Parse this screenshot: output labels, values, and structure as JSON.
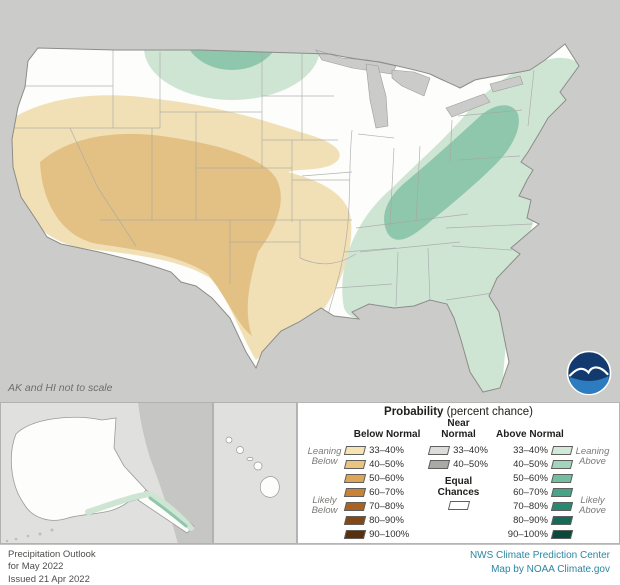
{
  "map": {
    "note": "AK and HI not to scale",
    "colors": {
      "canvas": "#cbcbc9",
      "us_fill": "#fdfdfb",
      "us_outline": "#8c8c8a",
      "state_border": "#a6a6a4",
      "lake_fill": "#cbcbc9",
      "below_33_40": "#f1e0b6",
      "below_40_50": "#e3c185",
      "above_33_40": "#cfe5d4",
      "above_40_50": "#8fc7ad",
      "inset_ocean": "#e0e0de",
      "inset_land_other": "#c6c6c4",
      "inset_border": "#b2b2b0"
    },
    "regions": [
      {
        "category": "Below Normal",
        "location": "Southwest and southern Plains (California, Nevada, Utah, Arizona, Colorado, New Mexico, Kansas, Oklahoma, Texas)",
        "probability": "40–50% core, 33–40% fringe"
      },
      {
        "category": "Above Normal",
        "location": "Northern Montana / North Dakota border area",
        "probability": "33–50%"
      },
      {
        "category": "Above Normal",
        "location": "Gulf Coast through Tennessee and Ohio Valleys to Mid-Atlantic and New England",
        "probability": "40–50% core, 33–40% fringe"
      },
      {
        "category": "Above Normal",
        "location": "Southern coastal Alaska",
        "probability": "33–50%"
      },
      {
        "category": "Equal Chances",
        "location": "Remaining areas (Pacific Northwest, upper Midwest, lower Mississippi Valley, Hawaii)",
        "probability": "Equal Chances"
      }
    ]
  },
  "legend": {
    "title_bold": "Probability",
    "title_rest": "(percent chance)",
    "below": {
      "header": "Below Normal",
      "rows": [
        {
          "label": "33–40%",
          "color": "#f4e3b5"
        },
        {
          "label": "40–50%",
          "color": "#eac57f"
        },
        {
          "label": "50–60%",
          "color": "#dda558"
        },
        {
          "label": "60–70%",
          "color": "#c88338"
        },
        {
          "label": "70–80%",
          "color": "#a86324"
        },
        {
          "label": "80–90%",
          "color": "#844817"
        },
        {
          "label": "90–100%",
          "color": "#59300d"
        }
      ],
      "side_labels": [
        "Leaning Below",
        "Likely Below"
      ]
    },
    "near": {
      "header": "Near Normal",
      "rows": [
        {
          "label": "33–40%",
          "color": "#dcdcda"
        },
        {
          "label": "40–50%",
          "color": "#a9a9a7"
        }
      ],
      "equal_label": "Equal Chances",
      "equal_color": "#ffffff"
    },
    "above": {
      "header": "Above Normal",
      "rows": [
        {
          "label": "33–40%",
          "color": "#d2e8d8"
        },
        {
          "label": "40–50%",
          "color": "#a3d4bd"
        },
        {
          "label": "50–60%",
          "color": "#74bda2"
        },
        {
          "label": "60–70%",
          "color": "#48a488"
        },
        {
          "label": "70–80%",
          "color": "#2a8870"
        },
        {
          "label": "80–90%",
          "color": "#146b57"
        },
        {
          "label": "90–100%",
          "color": "#074a3c"
        }
      ],
      "side_labels": [
        "Leaning Above",
        "Likely Above"
      ]
    }
  },
  "footer": {
    "left_lines": [
      "Precipitation Outlook",
      "for May 2022",
      "Issued 21 Apr 2022"
    ],
    "right_lines": [
      "NWS Climate Prediction Center",
      "Map by NOAA Climate.gov"
    ],
    "accent_color": "#2b87a1"
  },
  "logo": {
    "label": "NOAA"
  }
}
